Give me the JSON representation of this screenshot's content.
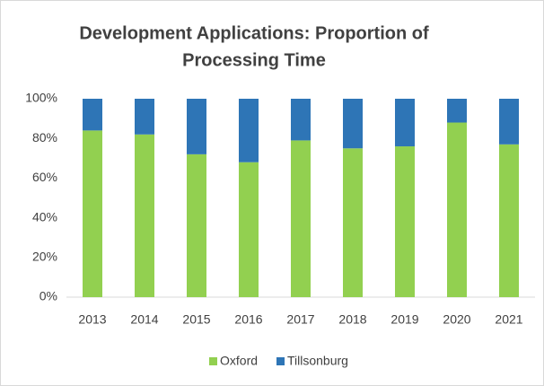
{
  "chart_data": {
    "type": "stacked_bar",
    "title": [
      "Development Applications: Proportion of",
      "Processing Time"
    ],
    "categories": [
      "2013",
      "2014",
      "2015",
      "2016",
      "2017",
      "2018",
      "2019",
      "2020",
      "2021"
    ],
    "series": [
      {
        "name": "Oxford",
        "color": "#92d050",
        "values": [
          84,
          82,
          72,
          68,
          79,
          75,
          76,
          88,
          77
        ]
      },
      {
        "name": "Tillsonburg",
        "color": "#2e75b6",
        "values": [
          16,
          18,
          28,
          32,
          21,
          25,
          24,
          12,
          23
        ]
      }
    ],
    "ylim": [
      0,
      100
    ],
    "yticks": [
      {
        "value": 0,
        "label": "0%"
      },
      {
        "value": 20,
        "label": "20%"
      },
      {
        "value": 40,
        "label": "40%"
      },
      {
        "value": 60,
        "label": "60%"
      },
      {
        "value": 80,
        "label": "80%"
      },
      {
        "value": 100,
        "label": "100%"
      }
    ],
    "grid": false,
    "legend": "bottom"
  }
}
